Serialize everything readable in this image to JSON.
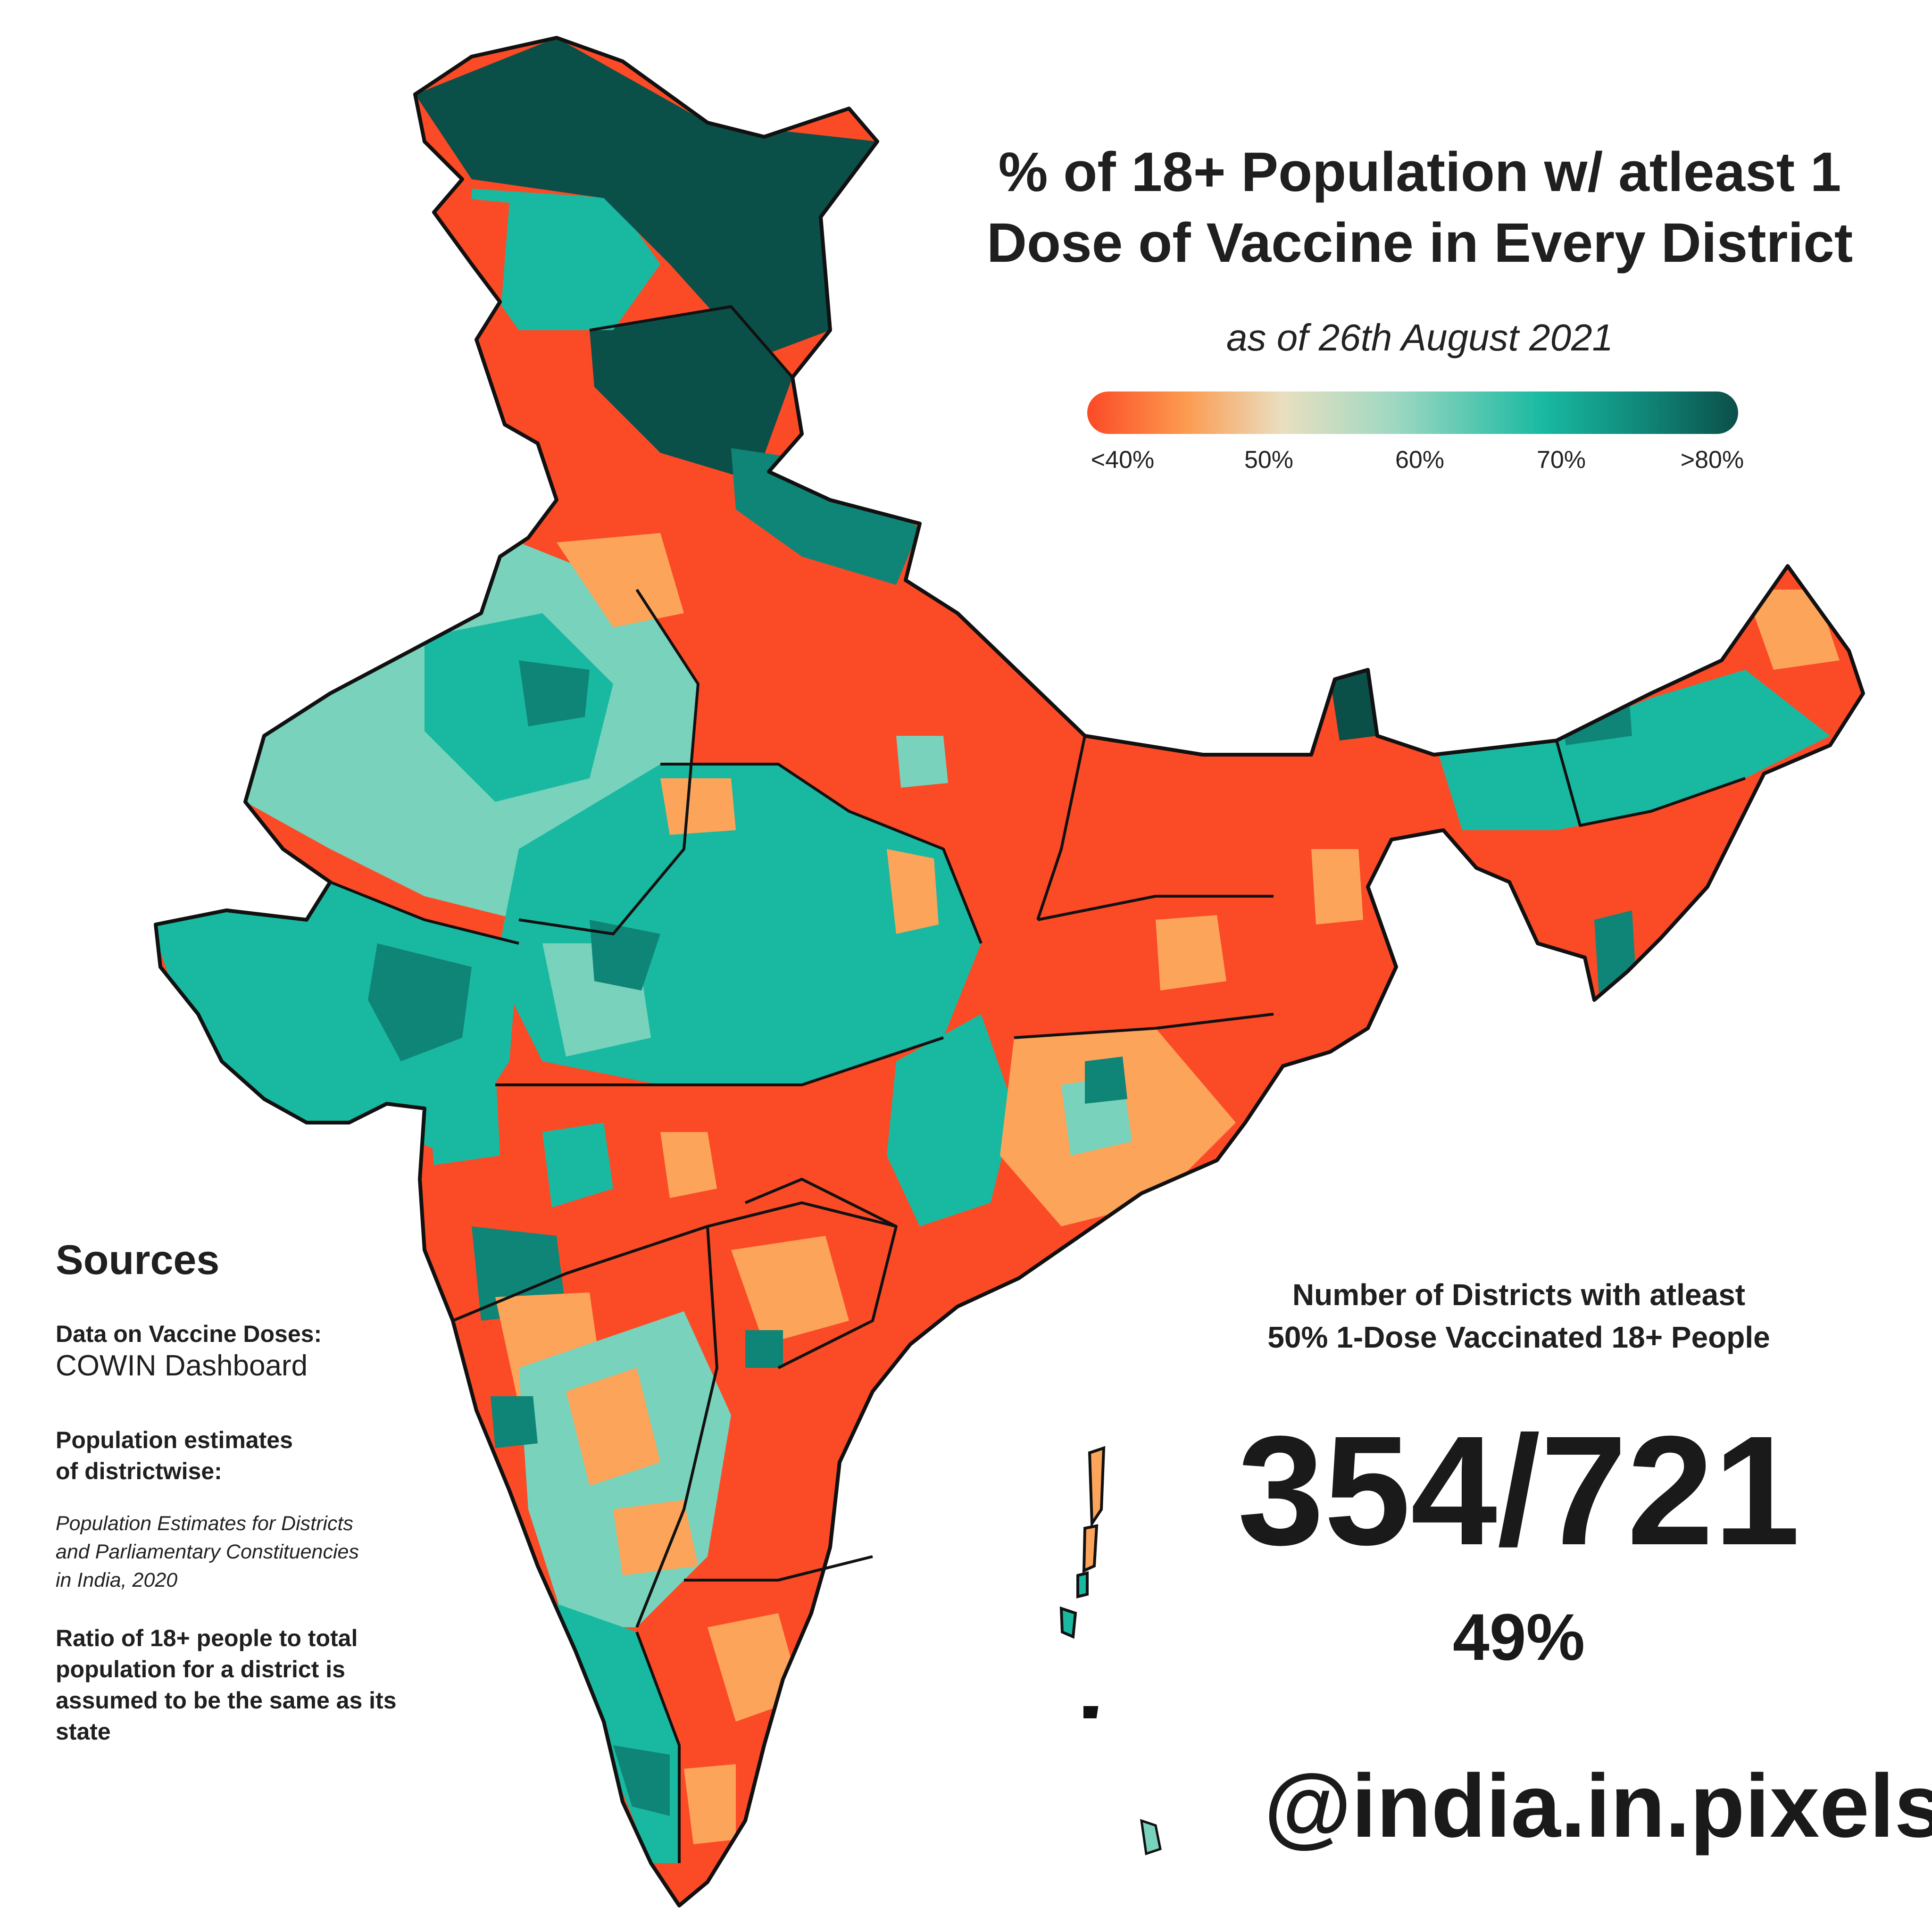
{
  "title_line1": "% of 18+ Population w/ atleast 1",
  "title_line2": "Dose of Vaccine in Every District",
  "subtitle": "as of 26th August 2021",
  "legend": {
    "ticks": [
      "<40%",
      "50%",
      "60%",
      "70%",
      ">80%"
    ],
    "colors": [
      "#fb4a26",
      "#fc9a4f",
      "#e9dfc0",
      "#9fd8c2",
      "#19b9a1",
      "#0f8577",
      "#0b4f49"
    ]
  },
  "sources": {
    "heading": "Sources",
    "vaccine_label": "Data on Vaccine Doses:",
    "vaccine_value": "COWIN Dashboard",
    "pop_label_1": "Population estimates",
    "pop_label_2": "of districtwise:",
    "pop_value_1": "Population Estimates for Districts",
    "pop_value_2": "and Parliamentary Constituencies",
    "pop_value_3": "in India, 2020",
    "ratio_1": "Ratio of 18+ people to total",
    "ratio_2": "population for a district is",
    "ratio_3": "assumed to be the same as its",
    "ratio_4": "state"
  },
  "stat": {
    "label_1": "Number of Districts with atleast",
    "label_2": "50% 1-Dose Vaccinated 18+ People",
    "value": "354/721",
    "percent": "49%"
  },
  "handle": "@india.in.pixels",
  "map_colors": {
    "north_dark": "#0b4f49",
    "red": "#fb4a26",
    "orange": "#fca45a",
    "light_teal": "#79d2bb",
    "teal": "#19b9a1",
    "dark_teal": "#0f8577",
    "border": "#111111"
  }
}
